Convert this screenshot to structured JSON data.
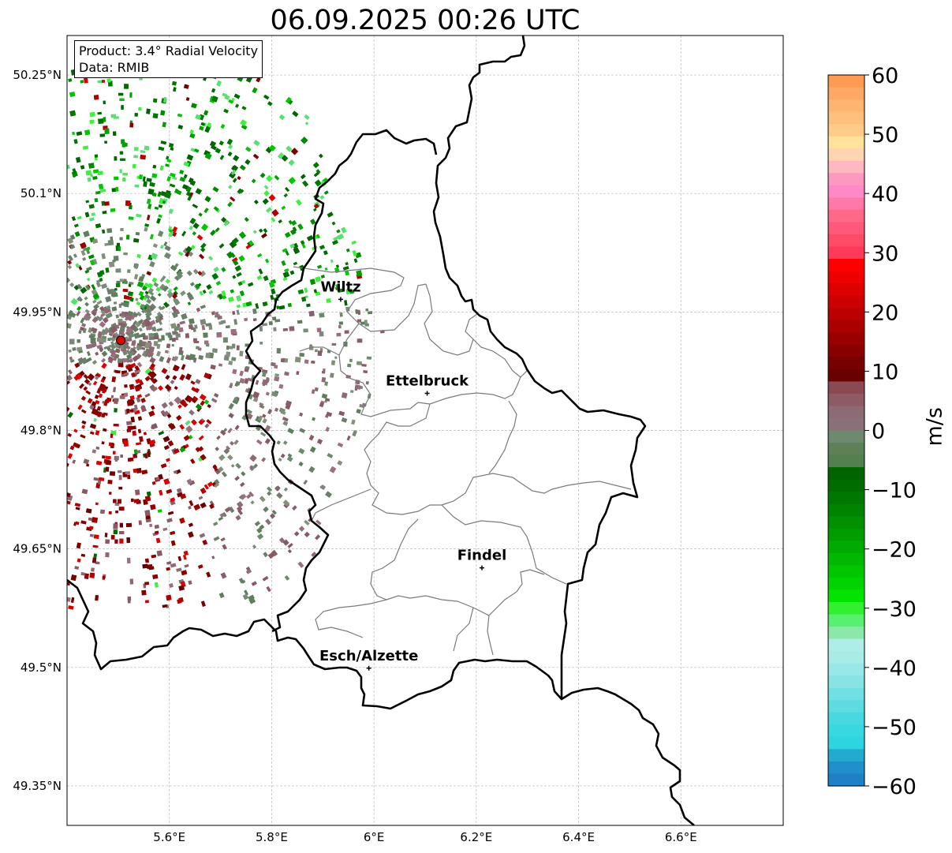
{
  "title": "06.09.2025 00:26 UTC",
  "info": {
    "product": "Product: 3.4° Radial Velocity",
    "data": "Data: RMIB"
  },
  "map": {
    "extent": {
      "lon": [
        5.4,
        6.8
      ],
      "lat": [
        49.3,
        50.3
      ]
    },
    "lat_ticks": [
      {
        "value": 50.25,
        "label": "50.25°N"
      },
      {
        "value": 50.1,
        "label": "50.1°N"
      },
      {
        "value": 49.95,
        "label": "49.95°N"
      },
      {
        "value": 49.8,
        "label": "49.8°N"
      },
      {
        "value": 49.65,
        "label": "49.65°N"
      },
      {
        "value": 49.5,
        "label": "49.5°N"
      },
      {
        "value": 49.35,
        "label": "49.35°N"
      }
    ],
    "lon_ticks": [
      {
        "value": 5.6,
        "label": "5.6°E"
      },
      {
        "value": 5.8,
        "label": "5.8°E"
      },
      {
        "value": 6.0,
        "label": "6°E"
      },
      {
        "value": 6.2,
        "label": "6.2°E"
      },
      {
        "value": 6.4,
        "label": "6.4°E"
      },
      {
        "value": 6.6,
        "label": "6.6°E"
      }
    ],
    "grid": true,
    "radar_site": {
      "lon": 5.505,
      "lat": 49.914,
      "color": "#e00000"
    },
    "cities": [
      {
        "name": "Wiltz",
        "lon": 5.935,
        "lat": 49.966
      },
      {
        "name": "Ettelbruck",
        "lon": 6.104,
        "lat": 49.847
      },
      {
        "name": "Findel",
        "lon": 6.211,
        "lat": 49.626
      },
      {
        "name": "Esch/Alzette",
        "lon": 5.99,
        "lat": 49.499
      }
    ]
  },
  "colorbar": {
    "label": "m/s",
    "range": [
      -60,
      60
    ],
    "ticks": [
      {
        "value": 60,
        "label": "60"
      },
      {
        "value": 50,
        "label": "50"
      },
      {
        "value": 40,
        "label": "40"
      },
      {
        "value": 30,
        "label": "30"
      },
      {
        "value": 20,
        "label": "20"
      },
      {
        "value": 10,
        "label": "10"
      },
      {
        "value": 0,
        "label": "0"
      },
      {
        "value": -10,
        "label": "−10"
      },
      {
        "value": -20,
        "label": "−20"
      },
      {
        "value": -30,
        "label": "−30"
      },
      {
        "value": -40,
        "label": "−40"
      },
      {
        "value": -50,
        "label": "−50"
      },
      {
        "value": -60,
        "label": "−60"
      }
    ],
    "colors_top_to_bottom": [
      "#ff9a55",
      "#ffa865",
      "#ffb570",
      "#ffc07e",
      "#ffcb88",
      "#ffe39a",
      "#ffd4b0",
      "#ffb8c0",
      "#ff98c0",
      "#ff88c8",
      "#ff78a8",
      "#ff6888",
      "#ff5878",
      "#ff4a68",
      "#ff3a58",
      "#ff0000",
      "#ee0000",
      "#dd0000",
      "#cc0000",
      "#bb0000",
      "#aa0000",
      "#990000",
      "#880000",
      "#770000",
      "#6a0000",
      "#8a4a52",
      "#8e5a64",
      "#8e6a74",
      "#8a7078",
      "#6e8a6e",
      "#5e8058",
      "#548050",
      "#006400",
      "#006c00",
      "#007800",
      "#008400",
      "#009000",
      "#009c00",
      "#00aa00",
      "#00b800",
      "#00c600",
      "#00d400",
      "#00e400",
      "#30f030",
      "#58f070",
      "#8ae8a8",
      "#b0ece8",
      "#a8ece8",
      "#98e8e8",
      "#88e4e4",
      "#70e0e4",
      "#5cdce0",
      "#48d8e0",
      "#38d8e0",
      "#2ed4e0",
      "#22aad0",
      "#2090cc",
      "#1f80c6"
    ]
  }
}
